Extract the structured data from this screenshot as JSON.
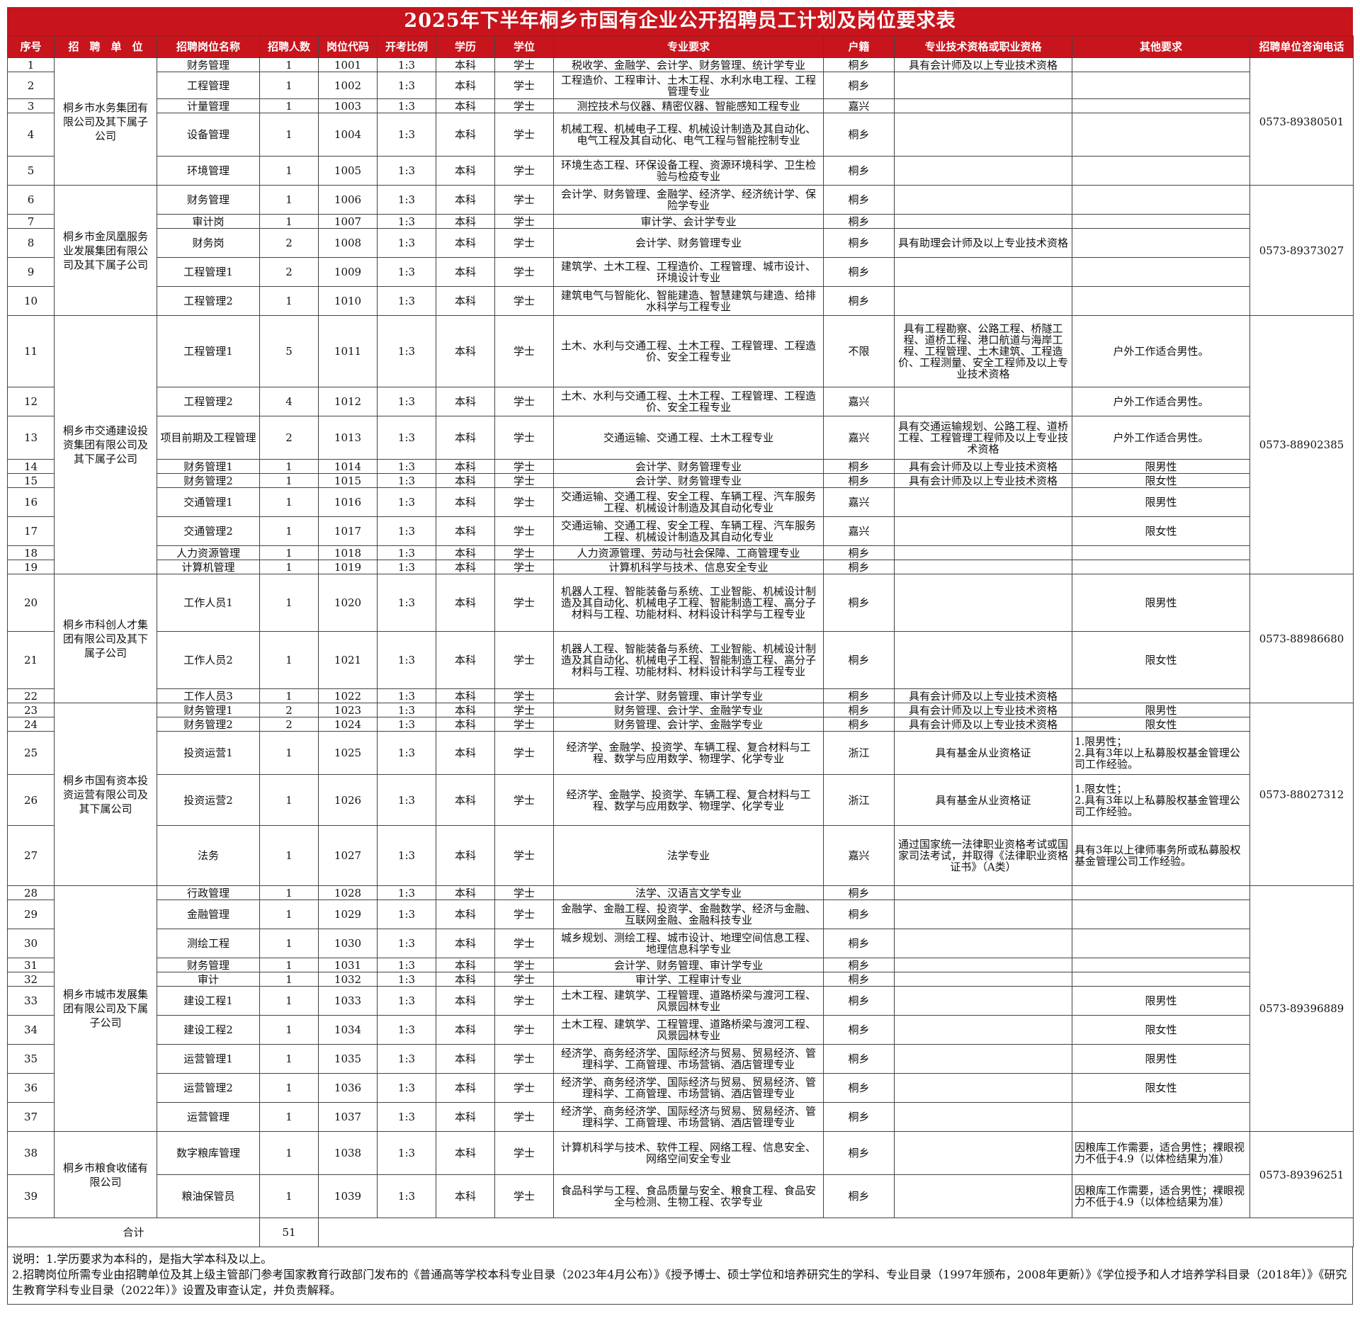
{
  "title": "2025年下半年桐乡市国有企业公开招聘员工计划及岗位要求表",
  "headers": [
    "序号",
    "招　聘　单　位",
    "招聘岗位名称",
    "招聘人数",
    "岗位代码",
    "开考比例",
    "学历",
    "学位",
    "专业要求",
    "户籍",
    "专业技术资格或职业资格",
    "其他要求",
    "招聘单位咨询电话"
  ],
  "groups": [
    {
      "unit": "桐乡市水务集团有限公司及其下属子公司",
      "phone": "0573-89380501",
      "rows": [
        {
          "no": "1",
          "post": "财务管理",
          "num": "1",
          "code": "1001",
          "ratio": "1:3",
          "edu": "本科",
          "degree": "学士",
          "major": "税收学、金融学、会计学、财务管理、统计学专业",
          "hukou": "桐乡",
          "qual": "具有会计师及以上专业技术资格",
          "other": "",
          "h": 20
        },
        {
          "no": "2",
          "post": "工程管理",
          "num": "1",
          "code": "1002",
          "ratio": "1:3",
          "edu": "本科",
          "degree": "学士",
          "major": "工程造价、工程审计、土木工程、水利水电工程、工程管理专业",
          "hukou": "桐乡",
          "qual": "",
          "other": "",
          "h": 38
        },
        {
          "no": "3",
          "post": "计量管理",
          "num": "1",
          "code": "1003",
          "ratio": "1:3",
          "edu": "本科",
          "degree": "学士",
          "major": "测控技术与仪器、精密仪器、智能感知工程专业",
          "hukou": "嘉兴",
          "qual": "",
          "other": "",
          "h": 20
        },
        {
          "no": "4",
          "post": "设备管理",
          "num": "1",
          "code": "1004",
          "ratio": "1:3",
          "edu": "本科",
          "degree": "学士",
          "major": "机械工程、机械电子工程、机械设计制造及其自动化、电气工程及其自动化、电气工程与智能控制专业",
          "hukou": "桐乡",
          "qual": "",
          "other": "",
          "h": 61
        },
        {
          "no": "5",
          "post": "环境管理",
          "num": "1",
          "code": "1005",
          "ratio": "1:3",
          "edu": "本科",
          "degree": "学士",
          "major": "环境生态工程、环保设备工程、资源环境科学、卫生检验与检疫专业",
          "hukou": "桐乡",
          "qual": "",
          "other": "",
          "h": 41
        }
      ]
    },
    {
      "unit": "桐乡市金凤凰服务业发展集团有限公司及其下属子公司",
      "phone": "0573-89373027",
      "rows": [
        {
          "no": "6",
          "post": "财务管理",
          "num": "1",
          "code": "1006",
          "ratio": "1:3",
          "edu": "本科",
          "degree": "学士",
          "major": "会计学、财务管理、金融学、经济学、经济统计学、保险学专业",
          "hukou": "桐乡",
          "qual": "",
          "other": "",
          "h": 41
        },
        {
          "no": "7",
          "post": "审计岗",
          "num": "1",
          "code": "1007",
          "ratio": "1:3",
          "edu": "本科",
          "degree": "学士",
          "major": "审计学、会计学专业",
          "hukou": "桐乡",
          "qual": "",
          "other": "",
          "h": 20
        },
        {
          "no": "8",
          "post": "财务岗",
          "num": "2",
          "code": "1008",
          "ratio": "1:3",
          "edu": "本科",
          "degree": "学士",
          "major": "会计学、财务管理专业",
          "hukou": "桐乡",
          "qual": "具有助理会计师及以上专业技术资格",
          "other": "",
          "h": 41
        },
        {
          "no": "9",
          "post": "工程管理1",
          "num": "2",
          "code": "1009",
          "ratio": "1:3",
          "edu": "本科",
          "degree": "学士",
          "major": "建筑学、土木工程、工程造价、工程管理、城市设计、环境设计专业",
          "hukou": "桐乡",
          "qual": "",
          "other": "",
          "h": 41
        },
        {
          "no": "10",
          "post": "工程管理2",
          "num": "1",
          "code": "1010",
          "ratio": "1:3",
          "edu": "本科",
          "degree": "学士",
          "major": "建筑电气与智能化、智能建造、智慧建筑与建造、给排水科学与工程专业",
          "hukou": "桐乡",
          "qual": "",
          "other": "",
          "h": 41
        }
      ]
    },
    {
      "unit": "桐乡市交通建设投资集团有限公司及其下属子公司",
      "phone": "0573-88902385",
      "rows": [
        {
          "no": "11",
          "post": "工程管理1",
          "num": "5",
          "code": "1011",
          "ratio": "1:3",
          "edu": "本科",
          "degree": "学士",
          "major": "土木、水利与交通工程、土木工程、工程管理、工程造价、安全工程专业",
          "hukou": "不限",
          "qual": "具有工程勘察、公路工程、桥隧工程、道桥工程、港口航道与海岸工程、工程管理、土木建筑、工程造价、工程测量、安全工程师及以上专业技术资格",
          "other": "户外工作适合男性。",
          "h": 101
        },
        {
          "no": "12",
          "post": "工程管理2",
          "num": "4",
          "code": "1012",
          "ratio": "1:3",
          "edu": "本科",
          "degree": "学士",
          "major": "土木、水利与交通工程、土木工程、工程管理、工程造价、安全工程专业",
          "hukou": "嘉兴",
          "qual": "",
          "other": "户外工作适合男性。",
          "h": 41
        },
        {
          "no": "13",
          "post": "项目前期及工程管理",
          "num": "2",
          "code": "1013",
          "ratio": "1:3",
          "edu": "本科",
          "degree": "学士",
          "major": "交通运输、交通工程、土木工程专业",
          "hukou": "嘉兴",
          "qual": "具有交通运输规划、公路工程、道桥工程、工程管理工程师及以上专业技术资格",
          "other": "户外工作适合男性。",
          "h": 61
        },
        {
          "no": "14",
          "post": "财务管理1",
          "num": "1",
          "code": "1014",
          "ratio": "1:3",
          "edu": "本科",
          "degree": "学士",
          "major": "会计学、财务管理专业",
          "hukou": "桐乡",
          "qual": "具有会计师及以上专业技术资格",
          "other": "限男性",
          "h": 20
        },
        {
          "no": "15",
          "post": "财务管理2",
          "num": "1",
          "code": "1015",
          "ratio": "1:3",
          "edu": "本科",
          "degree": "学士",
          "major": "会计学、财务管理专业",
          "hukou": "桐乡",
          "qual": "具有会计师及以上专业技术资格",
          "other": "限女性",
          "h": 20
        },
        {
          "no": "16",
          "post": "交通管理1",
          "num": "1",
          "code": "1016",
          "ratio": "1:3",
          "edu": "本科",
          "degree": "学士",
          "major": "交通运输、交通工程、安全工程、车辆工程、汽车服务工程、机械设计制造及其自动化专业",
          "hukou": "嘉兴",
          "qual": "",
          "other": "限男性",
          "h": 41
        },
        {
          "no": "17",
          "post": "交通管理2",
          "num": "1",
          "code": "1017",
          "ratio": "1:3",
          "edu": "本科",
          "degree": "学士",
          "major": "交通运输、交通工程、安全工程、车辆工程、汽车服务工程、机械设计制造及其自动化专业",
          "hukou": "嘉兴",
          "qual": "",
          "other": "限女性",
          "h": 41
        },
        {
          "no": "18",
          "post": "人力资源管理",
          "num": "1",
          "code": "1018",
          "ratio": "1:3",
          "edu": "本科",
          "degree": "学士",
          "major": "人力资源管理、劳动与社会保障、工商管理专业",
          "hukou": "桐乡",
          "qual": "",
          "other": "",
          "h": 20
        },
        {
          "no": "19",
          "post": "计算机管理",
          "num": "1",
          "code": "1019",
          "ratio": "1:3",
          "edu": "本科",
          "degree": "学士",
          "major": "计算机科学与技术、信息安全专业",
          "hukou": "桐乡",
          "qual": "",
          "other": "",
          "h": 20
        }
      ]
    },
    {
      "unit": "桐乡市科创人才集团有限公司及其下属子公司",
      "phone": "0573-88986680",
      "rows": [
        {
          "no": "20",
          "post": "工作人员1",
          "num": "1",
          "code": "1020",
          "ratio": "1:3",
          "edu": "本科",
          "degree": "学士",
          "major": "机器人工程、智能装备与系统、工业智能、机械设计制造及其自动化、机械电子工程、智能制造工程、高分子材料与工程、功能材料、材料设计科学与工程专业",
          "hukou": "桐乡",
          "qual": "",
          "other": "限男性",
          "h": 81
        },
        {
          "no": "21",
          "post": "工作人员2",
          "num": "1",
          "code": "1021",
          "ratio": "1:3",
          "edu": "本科",
          "degree": "学士",
          "major": "机器人工程、智能装备与系统、工业智能、机械设计制造及其自动化、机械电子工程、智能制造工程、高分子材料与工程、功能材料、材料设计科学与工程专业",
          "hukou": "桐乡",
          "qual": "",
          "other": "限女性",
          "h": 81
        },
        {
          "no": "22",
          "post": "工作人员3",
          "num": "1",
          "code": "1022",
          "ratio": "1:3",
          "edu": "本科",
          "degree": "学士",
          "major": "会计学、财务管理、审计学专业",
          "hukou": "桐乡",
          "qual": "具有会计师及以上专业技术资格",
          "other": "",
          "h": 20
        }
      ]
    },
    {
      "unit": "桐乡市国有资本投资运营有限公司及其下属公司",
      "phone": "0573-88027312",
      "rows": [
        {
          "no": "23",
          "post": "财务管理1",
          "num": "2",
          "code": "1023",
          "ratio": "1:3",
          "edu": "本科",
          "degree": "学士",
          "major": "财务管理、会计学、金融学专业",
          "hukou": "桐乡",
          "qual": "具有会计师及以上专业技术资格",
          "other": "限男性",
          "h": 20
        },
        {
          "no": "24",
          "post": "财务管理2",
          "num": "2",
          "code": "1024",
          "ratio": "1:3",
          "edu": "本科",
          "degree": "学士",
          "major": "财务管理、会计学、金融学专业",
          "hukou": "桐乡",
          "qual": "具有会计师及以上专业技术资格",
          "other": "限女性",
          "h": 20
        },
        {
          "no": "25",
          "post": "投资运营1",
          "num": "1",
          "code": "1025",
          "ratio": "1:3",
          "edu": "本科",
          "degree": "学士",
          "major": "经济学、金融学、投资学、车辆工程、复合材料与工程、数学与应用数学、物理学、化学专业",
          "hukou": "浙江",
          "qual": "具有基金从业资格证",
          "other": "1.限男性；\n2.具有3年以上私募股权基金管理公司工作经验。",
          "h": 61
        },
        {
          "no": "26",
          "post": "投资运营2",
          "num": "1",
          "code": "1026",
          "ratio": "1:3",
          "edu": "本科",
          "degree": "学士",
          "major": "经济学、金融学、投资学、车辆工程、复合材料与工程、数学与应用数学、物理学、化学专业",
          "hukou": "浙江",
          "qual": "具有基金从业资格证",
          "other": "1.限女性；\n2.具有3年以上私募股权基金管理公司工作经验。",
          "h": 72
        },
        {
          "no": "27",
          "post": "法务",
          "num": "1",
          "code": "1027",
          "ratio": "1:3",
          "edu": "本科",
          "degree": "学士",
          "major": "法学专业",
          "hukou": "嘉兴",
          "qual": "通过国家统一法律职业资格考试或国家司法考试，并取得《法律职业资格证书》（A类）",
          "other": "具有3年以上律师事务所或私募股权基金管理公司工作经验。",
          "h": 85
        }
      ]
    },
    {
      "unit": "桐乡市城市发展集团有限公司及下属子公司",
      "phone": "0573-89396889",
      "rows": [
        {
          "no": "28",
          "post": "行政管理",
          "num": "1",
          "code": "1028",
          "ratio": "1:3",
          "edu": "本科",
          "degree": "学士",
          "major": "法学、汉语言文学专业",
          "hukou": "桐乡",
          "qual": "",
          "other": "",
          "h": 20
        },
        {
          "no": "29",
          "post": "金融管理",
          "num": "1",
          "code": "1029",
          "ratio": "1:3",
          "edu": "本科",
          "degree": "学士",
          "major": "金融学、金融工程、投资学、金融数学、经济与金融、互联网金融、金融科技专业",
          "hukou": "桐乡",
          "qual": "",
          "other": "",
          "h": 41
        },
        {
          "no": "30",
          "post": "测绘工程",
          "num": "1",
          "code": "1030",
          "ratio": "1:3",
          "edu": "本科",
          "degree": "学士",
          "major": "城乡规划、测绘工程、城市设计、地理空间信息工程、地理信息科学专业",
          "hukou": "桐乡",
          "qual": "",
          "other": "",
          "h": 41
        },
        {
          "no": "31",
          "post": "财务管理",
          "num": "1",
          "code": "1031",
          "ratio": "1:3",
          "edu": "本科",
          "degree": "学士",
          "major": "会计学、财务管理、审计学专业",
          "hukou": "桐乡",
          "qual": "",
          "other": "",
          "h": 20
        },
        {
          "no": "32",
          "post": "审计",
          "num": "1",
          "code": "1032",
          "ratio": "1:3",
          "edu": "本科",
          "degree": "学士",
          "major": "审计学、工程审计专业",
          "hukou": "桐乡",
          "qual": "",
          "other": "",
          "h": 20
        },
        {
          "no": "33",
          "post": "建设工程1",
          "num": "1",
          "code": "1033",
          "ratio": "1:3",
          "edu": "本科",
          "degree": "学士",
          "major": "土木工程、建筑学、工程管理、道路桥梁与渡河工程、风景园林专业",
          "hukou": "桐乡",
          "qual": "",
          "other": "限男性",
          "h": 41
        },
        {
          "no": "34",
          "post": "建设工程2",
          "num": "1",
          "code": "1034",
          "ratio": "1:3",
          "edu": "本科",
          "degree": "学士",
          "major": "土木工程、建筑学、工程管理、道路桥梁与渡河工程、风景园林专业",
          "hukou": "桐乡",
          "qual": "",
          "other": "限女性",
          "h": 41
        },
        {
          "no": "35",
          "post": "运营管理1",
          "num": "1",
          "code": "1035",
          "ratio": "1:3",
          "edu": "本科",
          "degree": "学士",
          "major": "经济学、商务经济学、国际经济与贸易、贸易经济、管理科学、工商管理、市场营销、酒店管理专业",
          "hukou": "桐乡",
          "qual": "",
          "other": "限男性",
          "h": 41
        },
        {
          "no": "36",
          "post": "运营管理2",
          "num": "1",
          "code": "1036",
          "ratio": "1:3",
          "edu": "本科",
          "degree": "学士",
          "major": "经济学、商务经济学、国际经济与贸易、贸易经济、管理科学、工商管理、市场营销、酒店管理专业",
          "hukou": "桐乡",
          "qual": "",
          "other": "限女性",
          "h": 41
        },
        {
          "no": "37",
          "post": "运营管理",
          "num": "1",
          "code": "1037",
          "ratio": "1:3",
          "edu": "本科",
          "degree": "学士",
          "major": "经济学、商务经济学、国际经济与贸易、贸易经济、管理科学、工商管理、市场营销、酒店管理专业",
          "hukou": "桐乡",
          "qual": "",
          "other": "",
          "h": 41
        }
      ]
    },
    {
      "unit": "桐乡市粮食收储有限公司",
      "phone": "0573-89396251",
      "rows": [
        {
          "no": "38",
          "post": "数字粮库管理",
          "num": "1",
          "code": "1038",
          "ratio": "1:3",
          "edu": "本科",
          "degree": "学士",
          "major": "计算机科学与技术、软件工程、网络工程、信息安全、网络空间安全专业",
          "hukou": "桐乡",
          "qual": "",
          "other": "因粮库工作需要，适合男性；裸眼视力不低于4.9（以体检结果为准）",
          "h": 61
        },
        {
          "no": "39",
          "post": "粮油保管员",
          "num": "1",
          "code": "1039",
          "ratio": "1:3",
          "edu": "本科",
          "degree": "学士",
          "major": "食品科学与工程、食品质量与安全、粮食工程、食品安全与检测、生物工程、农学专业",
          "hukou": "桐乡",
          "qual": "",
          "other": "因粮库工作需要，适合男性；裸眼视力不低于4.9（以体检结果为准）",
          "h": 61
        }
      ]
    }
  ],
  "total": {
    "label": "合计",
    "count": "51"
  },
  "notes": [
    "说明：1.学历要求为本科的，是指大学本科及以上。",
    "2.招聘岗位所需专业由招聘单位及其上级主管部门参考国家教育行政部门发布的《普通高等学校本科专业目录（2023年4月公布）》《授予博士、硕士学位和培养研究生的学科、专业目录（1997年颁布，2008年更新）》《学位授予和人才培养学科目录（2018年）》《研究生教育学科专业目录（2022年）》设置及审查认定，并负责解释。"
  ]
}
